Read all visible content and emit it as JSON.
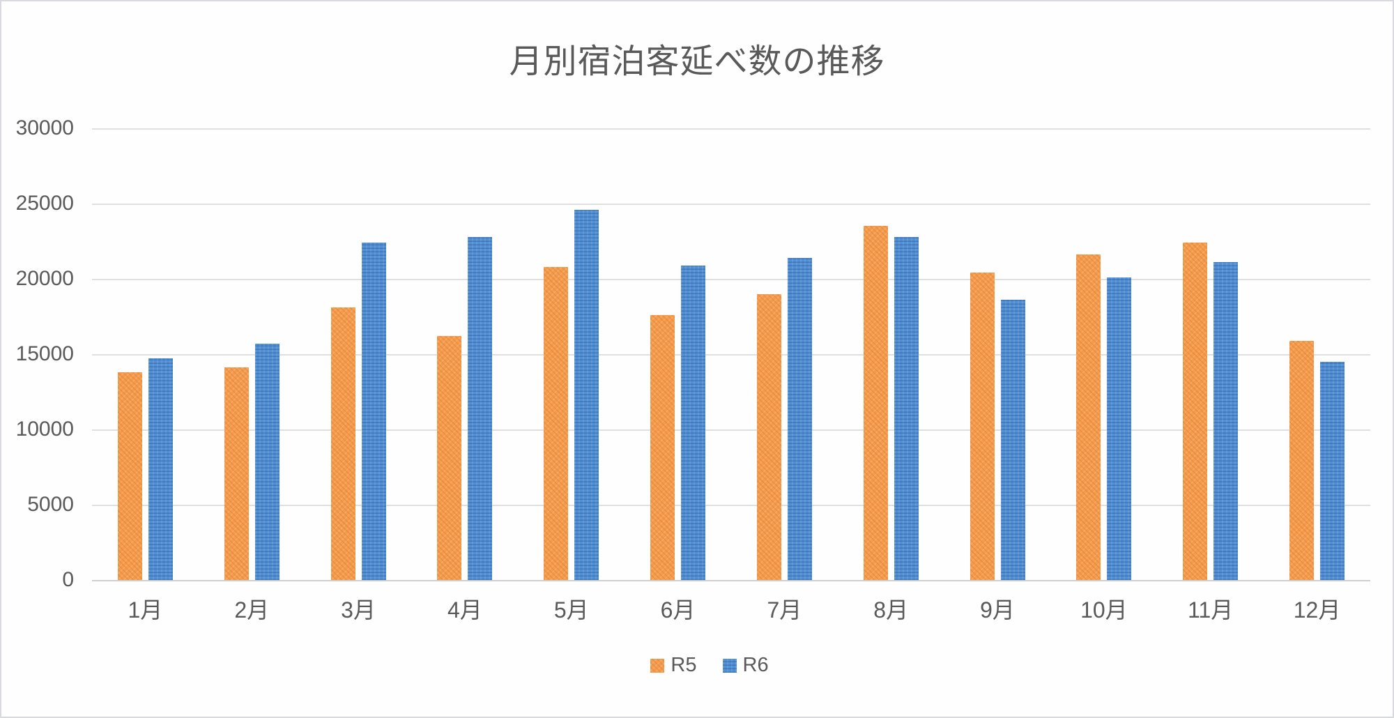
{
  "chart_data": {
    "type": "bar",
    "title": "月別宿泊客延べ数の推移",
    "categories": [
      "1月",
      "2月",
      "3月",
      "4月",
      "5月",
      "6月",
      "7月",
      "8月",
      "9月",
      "10月",
      "11月",
      "12月"
    ],
    "series": [
      {
        "name": "R5",
        "color": "#f49c4e",
        "pattern": "diagonal-hatch",
        "values": [
          13800,
          14100,
          18100,
          16200,
          20800,
          17600,
          19000,
          23500,
          20400,
          21600,
          22400,
          15900
        ]
      },
      {
        "name": "R6",
        "color": "#5190d5",
        "pattern": "horizontal-dash",
        "values": [
          14700,
          15700,
          22400,
          22800,
          24600,
          20900,
          21400,
          22800,
          18600,
          20100,
          21100,
          14500
        ]
      }
    ],
    "xlabel": "",
    "ylabel": "",
    "ylim": [
      0,
      30000
    ],
    "yticks": [
      0,
      5000,
      10000,
      15000,
      20000,
      25000,
      30000
    ],
    "grid": true,
    "legend_position": "bottom",
    "text_color": "#595959",
    "gridline_color": "#d6d4d6"
  }
}
